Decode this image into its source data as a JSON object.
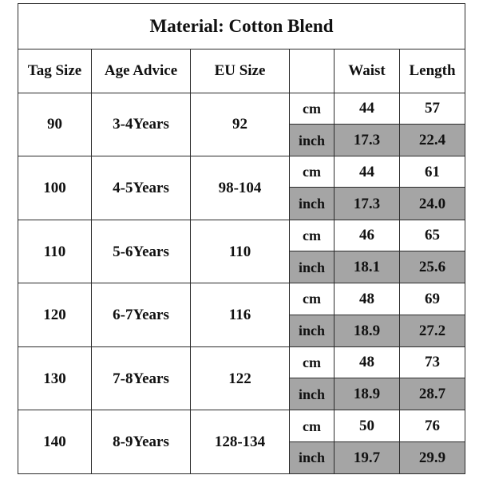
{
  "title": "Material: Cotton Blend",
  "headers": {
    "tag_size": "Tag Size",
    "age_advice": "Age Advice",
    "eu_size": "EU Size",
    "unit": "",
    "waist": "Waist",
    "length": "Length"
  },
  "units": {
    "cm": "cm",
    "inch": "inch"
  },
  "rows": [
    {
      "tag": "90",
      "age": "3-4Years",
      "eu": "92",
      "waist_cm": "44",
      "length_cm": "57",
      "waist_in": "17.3",
      "length_in": "22.4"
    },
    {
      "tag": "100",
      "age": "4-5Years",
      "eu": "98-104",
      "waist_cm": "44",
      "length_cm": "61",
      "waist_in": "17.3",
      "length_in": "24.0"
    },
    {
      "tag": "110",
      "age": "5-6Years",
      "eu": "110",
      "waist_cm": "46",
      "length_cm": "65",
      "waist_in": "18.1",
      "length_in": "25.6"
    },
    {
      "tag": "120",
      "age": "6-7Years",
      "eu": "116",
      "waist_cm": "48",
      "length_cm": "69",
      "waist_in": "18.9",
      "length_in": "27.2"
    },
    {
      "tag": "130",
      "age": "7-8Years",
      "eu": "122",
      "waist_cm": "48",
      "length_cm": "73",
      "waist_in": "18.9",
      "length_in": "28.7"
    },
    {
      "tag": "140",
      "age": "8-9Years",
      "eu": "128-134",
      "waist_cm": "50",
      "length_cm": "76",
      "waist_in": "19.7",
      "length_in": "29.9"
    }
  ],
  "colors": {
    "border": "#2b2b2b",
    "inch_row_shade": "#a5a5a5",
    "background": "#ffffff"
  }
}
